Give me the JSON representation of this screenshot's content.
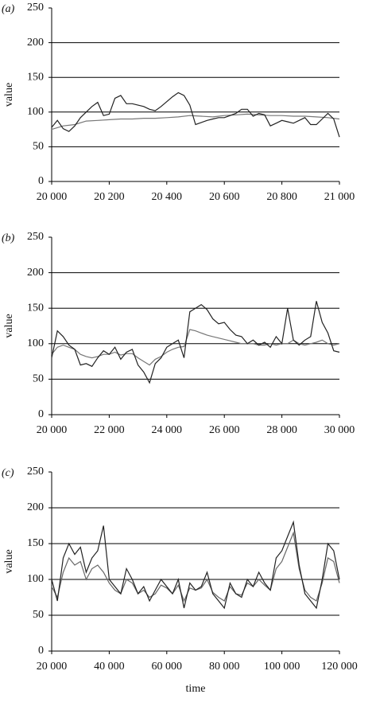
{
  "chart_data": [
    {
      "type": "line",
      "panel_label": "(a)",
      "y_label": "value",
      "x": [
        20000,
        20020,
        20040,
        20060,
        20080,
        20100,
        20120,
        20140,
        20160,
        20180,
        20200,
        20220,
        20240,
        20260,
        20280,
        20300,
        20320,
        20340,
        20360,
        20380,
        20400,
        20420,
        20440,
        20460,
        20480,
        20500,
        20520,
        20540,
        20560,
        20580,
        20600,
        20620,
        20640,
        20660,
        20680,
        20700,
        20720,
        20740,
        20760,
        20780,
        20800,
        20820,
        20840,
        20860,
        20880,
        20900,
        20920,
        20940,
        20960,
        20980,
        21000
      ],
      "series": [
        {
          "color": "#222222",
          "values": [
            78,
            88,
            76,
            72,
            80,
            92,
            100,
            108,
            114,
            95,
            97,
            120,
            124,
            112,
            112,
            110,
            108,
            104,
            102,
            108,
            115,
            122,
            128,
            124,
            110,
            82,
            85,
            88,
            90,
            92,
            92,
            95,
            98,
            104,
            104,
            94,
            98,
            96,
            80,
            84,
            88,
            86,
            84,
            88,
            92,
            82,
            82,
            90,
            98,
            90,
            64
          ]
        },
        {
          "color": "#777777",
          "x": [
            20000,
            20040,
            20080,
            20120,
            20160,
            20200,
            20240,
            20280,
            20320,
            20360,
            20400,
            20440,
            20480,
            20520,
            20560,
            20600,
            20640,
            20680,
            20720,
            20760,
            20800,
            20840,
            20880,
            20920,
            20960,
            21000
          ],
          "values": [
            75,
            80,
            82,
            87,
            88,
            89,
            90,
            90,
            91,
            91,
            92,
            93,
            95,
            94,
            93,
            95,
            96,
            97,
            96,
            95,
            95,
            94,
            94,
            93,
            92,
            90
          ]
        }
      ],
      "xlim": [
        20000,
        21000
      ],
      "xticks": [
        {
          "value": 20000,
          "label": "20 000"
        },
        {
          "value": 20200,
          "label": "20 200"
        },
        {
          "value": 20400,
          "label": "20 400"
        },
        {
          "value": 20600,
          "label": "20 600"
        },
        {
          "value": 20800,
          "label": "20 800"
        },
        {
          "value": 21000,
          "label": "21 000"
        }
      ],
      "ylim": [
        0,
        250
      ],
      "yticks": [
        0,
        50,
        100,
        150,
        200,
        250
      ],
      "grid": true
    },
    {
      "type": "line",
      "panel_label": "(b)",
      "y_label": "value",
      "x": [
        20000,
        20200,
        20400,
        20600,
        20800,
        21000,
        21200,
        21400,
        21600,
        21800,
        22000,
        22200,
        22400,
        22600,
        22800,
        23000,
        23200,
        23400,
        23600,
        23800,
        24000,
        24200,
        24400,
        24600,
        24800,
        25000,
        25200,
        25400,
        25600,
        25800,
        26000,
        26200,
        26400,
        26600,
        26800,
        27000,
        27200,
        27400,
        27600,
        27800,
        28000,
        28200,
        28400,
        28600,
        28800,
        29000,
        29200,
        29400,
        29600,
        29800,
        30000
      ],
      "series": [
        {
          "color": "#222222",
          "values": [
            80,
            118,
            110,
            98,
            92,
            70,
            72,
            68,
            80,
            90,
            85,
            95,
            78,
            88,
            92,
            70,
            60,
            45,
            72,
            80,
            95,
            100,
            105,
            80,
            145,
            150,
            155,
            148,
            135,
            128,
            130,
            120,
            112,
            110,
            100,
            105,
            98,
            102,
            95,
            110,
            100,
            150,
            105,
            98,
            105,
            110,
            160,
            130,
            115,
            90,
            88
          ]
        },
        {
          "color": "#777777",
          "values": [
            85,
            95,
            98,
            95,
            92,
            85,
            82,
            80,
            82,
            85,
            85,
            88,
            84,
            86,
            86,
            80,
            75,
            70,
            78,
            82,
            88,
            92,
            95,
            96,
            120,
            118,
            115,
            112,
            110,
            108,
            106,
            104,
            102,
            100,
            100,
            100,
            98,
            98,
            100,
            98,
            100,
            100,
            105,
            100,
            98,
            100,
            102,
            105,
            100,
            98,
            100
          ]
        }
      ],
      "xlim": [
        20000,
        30000
      ],
      "xticks": [
        {
          "value": 20000,
          "label": "20 000"
        },
        {
          "value": 22000,
          "label": "22 000"
        },
        {
          "value": 24000,
          "label": "24 000"
        },
        {
          "value": 26000,
          "label": "26 000"
        },
        {
          "value": 28000,
          "label": "28 000"
        },
        {
          "value": 30000,
          "label": "30 000"
        }
      ],
      "ylim": [
        0,
        250
      ],
      "yticks": [
        0,
        50,
        100,
        150,
        200,
        250
      ],
      "grid": true
    },
    {
      "type": "line",
      "panel_label": "(c)",
      "y_label": "value",
      "x_label": "time",
      "x": [
        20000,
        22000,
        24000,
        26000,
        28000,
        30000,
        32000,
        34000,
        36000,
        38000,
        40000,
        42000,
        44000,
        46000,
        48000,
        50000,
        52000,
        54000,
        56000,
        58000,
        60000,
        62000,
        64000,
        66000,
        68000,
        70000,
        72000,
        74000,
        76000,
        78000,
        80000,
        82000,
        84000,
        86000,
        88000,
        90000,
        92000,
        94000,
        96000,
        98000,
        100000,
        102000,
        104000,
        106000,
        108000,
        110000,
        112000,
        114000,
        116000,
        118000,
        120000
      ],
      "series": [
        {
          "color": "#222222",
          "values": [
            100,
            70,
            130,
            150,
            135,
            145,
            110,
            130,
            140,
            175,
            100,
            90,
            80,
            115,
            100,
            80,
            90,
            70,
            85,
            100,
            90,
            80,
            100,
            60,
            95,
            85,
            90,
            110,
            80,
            70,
            60,
            95,
            80,
            75,
            100,
            90,
            110,
            95,
            85,
            130,
            140,
            160,
            180,
            120,
            80,
            70,
            60,
            100,
            150,
            140,
            100
          ]
        },
        {
          "color": "#666666",
          "values": [
            90,
            75,
            110,
            130,
            120,
            125,
            100,
            115,
            120,
            110,
            95,
            85,
            80,
            100,
            95,
            80,
            85,
            75,
            80,
            92,
            88,
            80,
            92,
            70,
            88,
            85,
            88,
            100,
            82,
            75,
            70,
            90,
            80,
            78,
            95,
            90,
            100,
            92,
            85,
            115,
            125,
            145,
            165,
            115,
            85,
            75,
            70,
            95,
            130,
            125,
            95
          ]
        }
      ],
      "xlim": [
        20000,
        120000
      ],
      "xticks": [
        {
          "value": 20000,
          "label": "20 000"
        },
        {
          "value": 40000,
          "label": "40 000"
        },
        {
          "value": 60000,
          "label": "60 000"
        },
        {
          "value": 80000,
          "label": "80 000"
        },
        {
          "value": 100000,
          "label": "100 000"
        },
        {
          "value": 120000,
          "label": "120 000"
        }
      ],
      "ylim": [
        0,
        250
      ],
      "yticks": [
        0,
        50,
        100,
        150,
        200,
        250
      ],
      "grid": true
    }
  ]
}
